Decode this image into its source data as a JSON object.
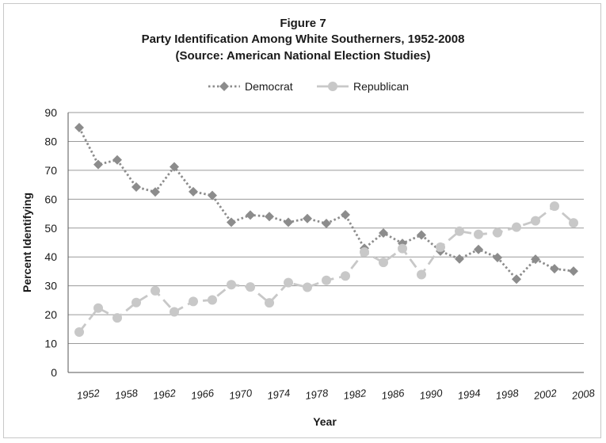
{
  "chart_data": {
    "type": "line",
    "title": "Figure 7",
    "subtitle": "Party Identification Among White Southerners,  1952-2008",
    "source": "(Source: American National Election Studies)",
    "xlabel": "Year",
    "ylabel": "Percent Identifying",
    "ylim": [
      0,
      90
    ],
    "yticks": [
      0,
      10,
      20,
      30,
      40,
      50,
      60,
      70,
      80,
      90
    ],
    "xtick_labels": [
      "1952",
      "1958",
      "1962",
      "1966",
      "1970",
      "1974",
      "1978",
      "1982",
      "1986",
      "1990",
      "1994",
      "1998",
      "2002",
      "2008"
    ],
    "grid": true,
    "legend_position": "top-center",
    "series": [
      {
        "name": "Democrat",
        "color": "#8c8c8c",
        "style": "dotted",
        "marker": "diamond",
        "values": [
          84.8,
          72.0,
          73.6,
          64.2,
          62.5,
          71.2,
          62.6,
          61.3,
          52.0,
          54.5,
          54.0,
          52.0,
          53.3,
          51.6,
          54.6,
          43.0,
          48.3,
          44.7,
          47.6,
          42.0,
          39.3,
          42.6,
          39.8,
          32.3,
          39.2,
          35.9,
          35.1
        ]
      },
      {
        "name": "Republican",
        "color": "#c8c8c8",
        "style": "dashed",
        "marker": "circle",
        "values": [
          14.0,
          22.3,
          18.9,
          24.2,
          28.3,
          21.0,
          24.6,
          25.1,
          30.4,
          29.6,
          24.1,
          31.1,
          29.5,
          31.9,
          33.4,
          41.7,
          38.1,
          42.9,
          33.9,
          43.4,
          48.9,
          47.8,
          48.4,
          50.3,
          52.5,
          57.6,
          51.8
        ]
      }
    ]
  }
}
